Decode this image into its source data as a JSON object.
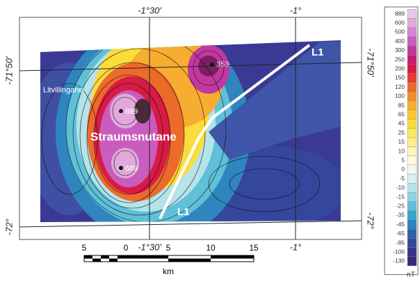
{
  "map": {
    "coordinates": {
      "top": [
        "-1°30'",
        "-1°"
      ],
      "bottom": [
        "-1°30'",
        "-1°"
      ],
      "left": [
        "-71°50'",
        "-72°"
      ],
      "right": [
        "-71°50'",
        "-72°"
      ]
    },
    "place_name": "Litvillingane",
    "feature_name": "Straumsnutane",
    "profile": {
      "start_label": "L1",
      "end_label": "L1"
    },
    "peaks": [
      "889",
      "689",
      "353"
    ]
  },
  "legend": {
    "unit": "nT",
    "entries": [
      {
        "label": "889",
        "color": "#eac9e6"
      },
      {
        "label": "600",
        "color": "#e2a8dc"
      },
      {
        "label": "500",
        "color": "#d884cf"
      },
      {
        "label": "400",
        "color": "#c95dbd"
      },
      {
        "label": "300",
        "color": "#c2389f"
      },
      {
        "label": "250",
        "color": "#c71c6f"
      },
      {
        "label": "200",
        "color": "#d71b45"
      },
      {
        "label": "150",
        "color": "#e63c2f"
      },
      {
        "label": "120",
        "color": "#ec6a2a"
      },
      {
        "label": "100",
        "color": "#f38d2b"
      },
      {
        "label": "85",
        "color": "#f7ad2f"
      },
      {
        "label": "65",
        "color": "#f9c732"
      },
      {
        "label": "45",
        "color": "#fbdc3a"
      },
      {
        "label": "25",
        "color": "#fce85c"
      },
      {
        "label": "15",
        "color": "#fdf08c"
      },
      {
        "label": "10",
        "color": "#fef6b5"
      },
      {
        "label": "5",
        "color": "#fffbdc"
      },
      {
        "label": "0",
        "color": "#f2f9f6"
      },
      {
        "label": "-5",
        "color": "#d9f0f1"
      },
      {
        "label": "-10",
        "color": "#b5e3ea"
      },
      {
        "label": "-15",
        "color": "#8dd3e2"
      },
      {
        "label": "-25",
        "color": "#5fc0d8"
      },
      {
        "label": "-35",
        "color": "#36a6cd"
      },
      {
        "label": "-45",
        "color": "#2a86bf"
      },
      {
        "label": "-65",
        "color": "#2f62ad"
      },
      {
        "label": "-85",
        "color": "#35479c"
      },
      {
        "label": "-100",
        "color": "#39358c"
      },
      {
        "label": "-130",
        "color": "#3a2a78"
      }
    ]
  },
  "scale_bar": {
    "ticks": [
      "5",
      "0",
      "5",
      "10",
      "15"
    ],
    "unit": "km"
  }
}
